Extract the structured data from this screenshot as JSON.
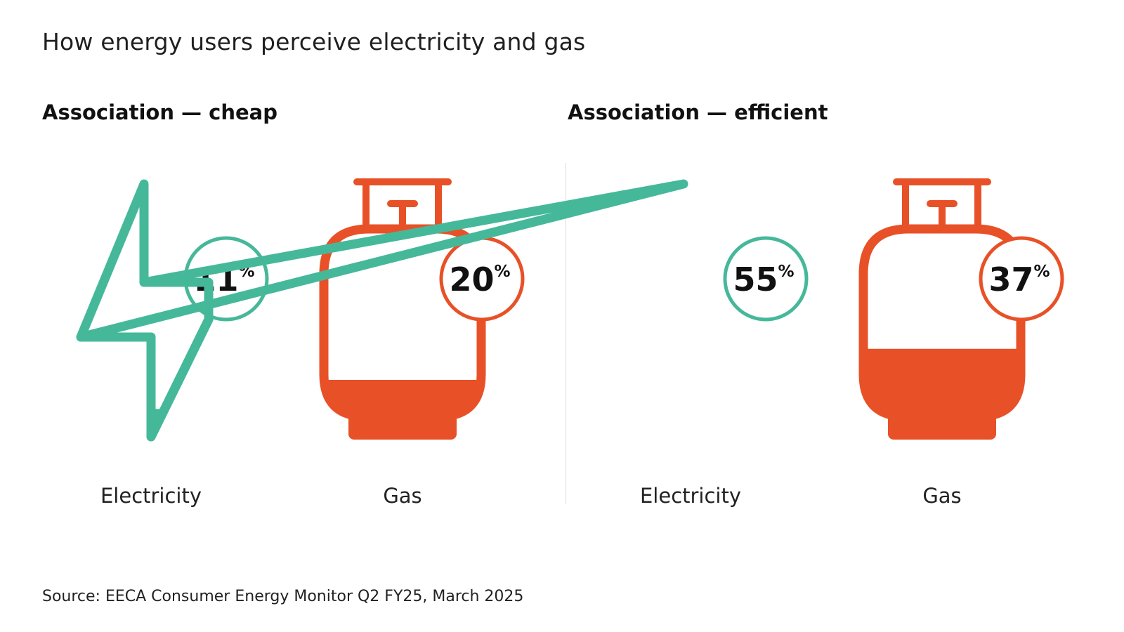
{
  "title": "How energy users perceive electricity and gas",
  "source": "Source: EECA Consumer Energy Monitor Q2 FY25, March 2025",
  "colors": {
    "electricity": "#46B89A",
    "gas": "#E85127",
    "text": "#111111"
  },
  "chart_data": [
    {
      "type": "pictograph",
      "title": "Association — cheap",
      "categories": [
        "Electricity",
        "Gas"
      ],
      "values": [
        11,
        20
      ],
      "value_labels": [
        "11",
        "20"
      ],
      "unit": "%",
      "icons": [
        "lightning-bolt-icon",
        "gas-cylinder-icon"
      ],
      "colors": [
        "#46B89A",
        "#E85127"
      ],
      "ylim": [
        0,
        100
      ]
    },
    {
      "type": "pictograph",
      "title": "Association — efficient",
      "categories": [
        "Electricity",
        "Gas"
      ],
      "values": [
        55,
        37
      ],
      "value_labels": [
        "55",
        "37"
      ],
      "unit": "%",
      "icons": [
        "lightning-bolt-icon",
        "gas-cylinder-icon"
      ],
      "colors": [
        "#46B89A",
        "#E85127"
      ],
      "ylim": [
        0,
        100
      ]
    }
  ]
}
